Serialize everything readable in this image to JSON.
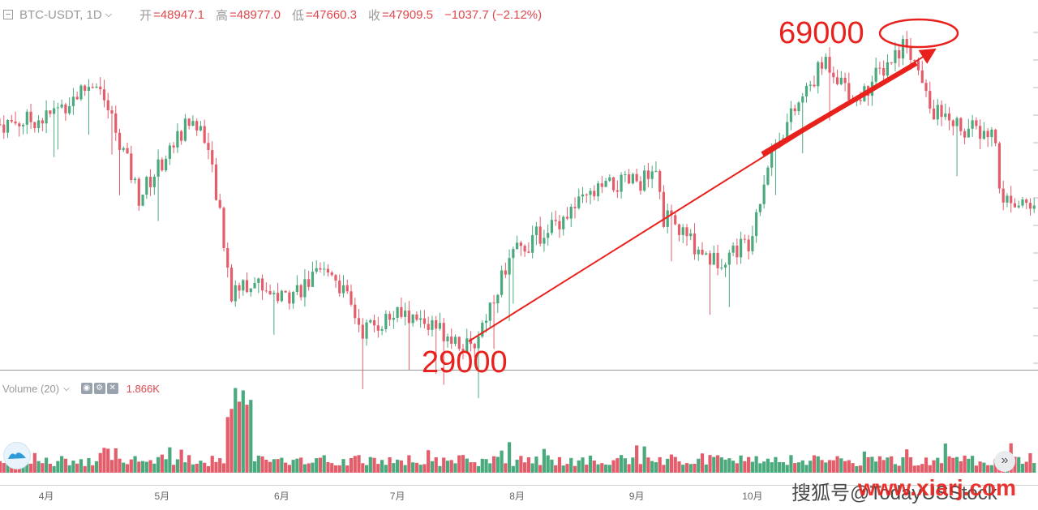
{
  "header": {
    "symbol": "BTC-USDT, 1D",
    "open_label": "开",
    "open": "=48947.1",
    "high_label": "高",
    "high": "=48977.0",
    "low_label": "低",
    "low": "=47660.3",
    "close_label": "收",
    "close": "=47909.5",
    "change": "−1037.7 (−2.12%)"
  },
  "volume_panel": {
    "label": "Volume (20)",
    "value": "1.866K"
  },
  "annotations": {
    "low_price": "29000",
    "high_price": "69000"
  },
  "watermark": {
    "text": "搜狐号@TodayUSStock",
    "site": "www.xiarj.com"
  },
  "colors": {
    "up": "#4aaa7d",
    "down": "#e35d6a",
    "annotation": "#e8211d"
  },
  "chart_data": {
    "type": "candlestick",
    "symbol": "BTC-USDT",
    "interval": "1D",
    "x_tick_labels": [
      "4月",
      "5月",
      "6月",
      "7月",
      "8月",
      "9月",
      "10月"
    ],
    "price_range_approx": [
      28000,
      70000
    ],
    "key_levels": [
      {
        "label": "29000",
        "period": "7月 (late)"
      },
      {
        "label": "69000",
        "period": "11月 (early)"
      }
    ],
    "close_path_approx": [
      {
        "date": "2021-03-20",
        "close": 58000
      },
      {
        "date": "2021-04-01",
        "close": 58800
      },
      {
        "date": "2021-04-14",
        "close": 63500
      },
      {
        "date": "2021-04-20",
        "close": 56000
      },
      {
        "date": "2021-04-25",
        "close": 49000
      },
      {
        "date": "2021-05-08",
        "close": 58500
      },
      {
        "date": "2021-05-12",
        "close": 57000
      },
      {
        "date": "2021-05-16",
        "close": 46500
      },
      {
        "date": "2021-05-19",
        "close": 37000
      },
      {
        "date": "2021-05-25",
        "close": 38500
      },
      {
        "date": "2021-06-01",
        "close": 36500
      },
      {
        "date": "2021-06-14",
        "close": 40000
      },
      {
        "date": "2021-06-22",
        "close": 32500
      },
      {
        "date": "2021-07-01",
        "close": 34500
      },
      {
        "date": "2021-07-15",
        "close": 32000
      },
      {
        "date": "2021-07-20",
        "close": 29800
      },
      {
        "date": "2021-07-30",
        "close": 41500
      },
      {
        "date": "2021-08-14",
        "close": 47000
      },
      {
        "date": "2021-08-23",
        "close": 50000
      },
      {
        "date": "2021-09-06",
        "close": 51500
      },
      {
        "date": "2021-09-08",
        "close": 46500
      },
      {
        "date": "2021-09-21",
        "close": 41000
      },
      {
        "date": "2021-09-30",
        "close": 43500
      },
      {
        "date": "2021-10-06",
        "close": 55000
      },
      {
        "date": "2021-10-20",
        "close": 66000
      },
      {
        "date": "2021-10-28",
        "close": 61000
      },
      {
        "date": "2021-11-10",
        "close": 68500
      },
      {
        "date": "2021-11-16",
        "close": 60000
      },
      {
        "date": "2021-11-25",
        "close": 57500
      },
      {
        "date": "2021-12-03",
        "close": 56500
      },
      {
        "date": "2021-12-04",
        "close": 49000
      },
      {
        "date": "2021-12-13",
        "close": 47900
      }
    ],
    "volume": {
      "label": "Volume (20)",
      "last": "1.866K"
    }
  }
}
